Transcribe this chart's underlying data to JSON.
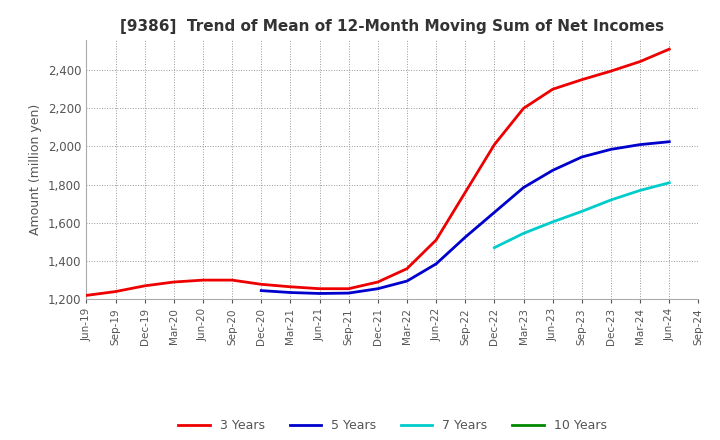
{
  "title": "[9386]  Trend of Mean of 12-Month Moving Sum of Net Incomes",
  "ylabel": "Amount (million yen)",
  "background_color": "#ffffff",
  "grid_color": "#999999",
  "title_color": "#333333",
  "label_color": "#555555",
  "ylim": [
    1200,
    2560
  ],
  "yticks": [
    1200,
    1400,
    1600,
    1800,
    2000,
    2200,
    2400
  ],
  "series": {
    "3 Years": {
      "color": "#ee0000",
      "data": {
        "Jun-19": 1220,
        "Sep-19": 1240,
        "Dec-19": 1270,
        "Mar-20": 1290,
        "Jun-20": 1300,
        "Sep-20": 1300,
        "Dec-20": 1278,
        "Mar-21": 1265,
        "Jun-21": 1255,
        "Sep-21": 1255,
        "Dec-21": 1290,
        "Mar-22": 1360,
        "Jun-22": 1510,
        "Sep-22": 1760,
        "Dec-22": 2010,
        "Mar-23": 2200,
        "Jun-23": 2300,
        "Sep-23": 2350,
        "Dec-23": 2395,
        "Mar-24": 2445,
        "Jun-24": 2510
      }
    },
    "5 Years": {
      "color": "#0000cc",
      "data": {
        "Dec-20": 1245,
        "Mar-21": 1235,
        "Jun-21": 1230,
        "Sep-21": 1232,
        "Dec-21": 1255,
        "Mar-22": 1295,
        "Jun-22": 1385,
        "Sep-22": 1525,
        "Dec-22": 1655,
        "Mar-23": 1785,
        "Jun-23": 1875,
        "Sep-23": 1945,
        "Dec-23": 1985,
        "Mar-24": 2010,
        "Jun-24": 2025
      }
    },
    "7 Years": {
      "color": "#00cccc",
      "data": {
        "Dec-22": 1470,
        "Mar-23": 1545,
        "Jun-23": 1605,
        "Sep-23": 1660,
        "Dec-23": 1720,
        "Mar-24": 1770,
        "Jun-24": 1810
      }
    },
    "10 Years": {
      "color": "#008800",
      "data": {}
    }
  },
  "xtick_labels": [
    "Jun-19",
    "Sep-19",
    "Dec-19",
    "Mar-20",
    "Jun-20",
    "Sep-20",
    "Dec-20",
    "Mar-21",
    "Jun-21",
    "Sep-21",
    "Dec-21",
    "Mar-22",
    "Jun-22",
    "Sep-22",
    "Dec-22",
    "Mar-23",
    "Jun-23",
    "Sep-23",
    "Dec-23",
    "Mar-24",
    "Jun-24",
    "Sep-24"
  ]
}
